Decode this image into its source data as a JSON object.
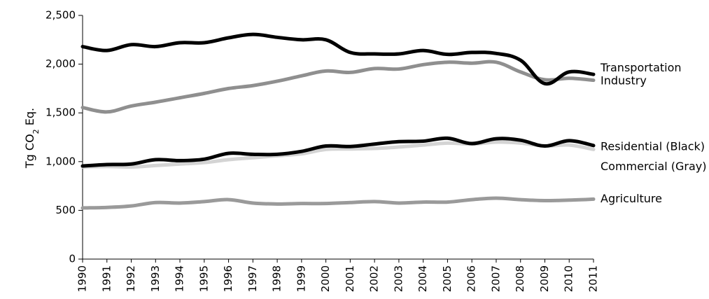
{
  "chart_data": {
    "type": "line",
    "ylabel": "Tg CO",
    "ylabel_sub": "2",
    "ylabel_suffix": " Eq.",
    "ylim": [
      0,
      2500
    ],
    "yticks": [
      0,
      500,
      1000,
      1500,
      2000,
      2500
    ],
    "ytick_labels": [
      "0",
      "500",
      "1,000",
      "1,500",
      "2,000",
      "2,500"
    ],
    "x": [
      1990,
      1991,
      1992,
      1993,
      1994,
      1995,
      1996,
      1997,
      1998,
      1999,
      2000,
      2001,
      2002,
      2003,
      2004,
      2005,
      2006,
      2007,
      2008,
      2009,
      2010,
      2011
    ],
    "x_labels": [
      "1990",
      "1991",
      "1992",
      "1993",
      "1994",
      "1995",
      "1996",
      "1997",
      "1998",
      "1999",
      "2000",
      "2001",
      "2002",
      "2003",
      "2004",
      "2005",
      "2006",
      "2007",
      "2008",
      "2009",
      "2010",
      "2011"
    ],
    "grid": false,
    "series": [
      {
        "name": "Industry",
        "color": "#000000",
        "values": [
          2180,
          2140,
          2200,
          2180,
          2220,
          2220,
          2270,
          2305,
          2275,
          2250,
          2250,
          2120,
          2105,
          2105,
          2140,
          2100,
          2120,
          2110,
          2040,
          1800,
          1920,
          1895
        ]
      },
      {
        "name": "Transportation",
        "color": "#8f8f8f",
        "values": [
          1555,
          1510,
          1570,
          1610,
          1655,
          1700,
          1750,
          1780,
          1825,
          1880,
          1930,
          1915,
          1955,
          1950,
          1995,
          2020,
          2010,
          2020,
          1920,
          1840,
          1855,
          1835
        ]
      },
      {
        "name": "Residential (Black)",
        "color": "#000000",
        "values": [
          955,
          970,
          975,
          1020,
          1010,
          1025,
          1085,
          1075,
          1075,
          1105,
          1160,
          1155,
          1180,
          1205,
          1210,
          1240,
          1185,
          1235,
          1220,
          1160,
          1215,
          1165
        ]
      },
      {
        "name": "Commercial (Gray)",
        "color": "#d4d4d4",
        "values": [
          945,
          950,
          945,
          960,
          975,
          990,
          1020,
          1040,
          1060,
          1080,
          1125,
          1130,
          1135,
          1150,
          1170,
          1190,
          1180,
          1200,
          1190,
          1160,
          1170,
          1125
        ]
      },
      {
        "name": "Agriculture",
        "color": "#9a9a9a",
        "values": [
          525,
          530,
          545,
          580,
          575,
          590,
          610,
          575,
          565,
          570,
          570,
          580,
          590,
          575,
          585,
          585,
          610,
          625,
          610,
          600,
          605,
          615
        ]
      }
    ],
    "labels": [
      {
        "text": "Industry",
        "series": 0
      },
      {
        "text": "Transportation",
        "series": 1
      },
      {
        "text": "Residential (Black)",
        "series": 2
      },
      {
        "text": "Commercial (Gray)",
        "series": 3
      },
      {
        "text": "Agriculture",
        "series": 4
      }
    ]
  }
}
